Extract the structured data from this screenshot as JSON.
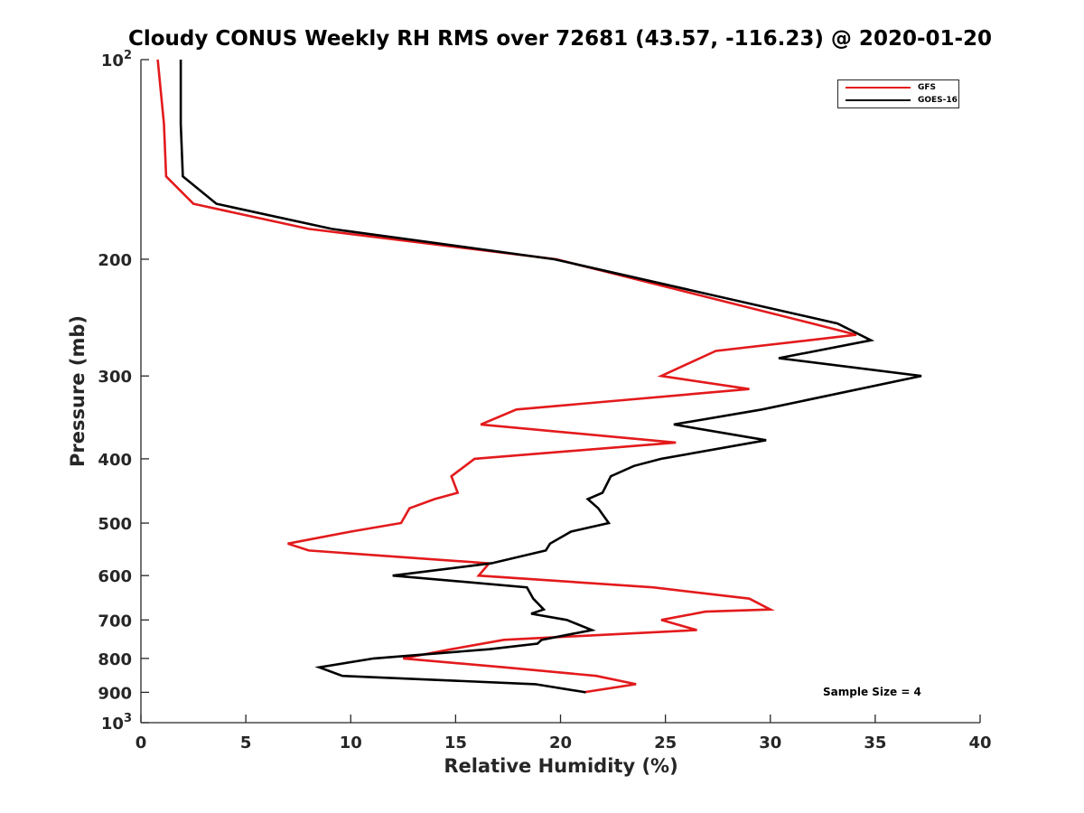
{
  "chart_data": {
    "type": "line",
    "title": "Cloudy CONUS Weekly RH RMS over 72681 (43.57, -116.23) @ 2020-01-20",
    "xlabel": "Relative Humidity (%)",
    "ylabel": "Pressure (mb)",
    "xlim": [
      0,
      40
    ],
    "ylim": [
      1000,
      100
    ],
    "yscale": "log",
    "y_reversed": true,
    "grid": false,
    "legend_position": "top-right",
    "xticks": [
      0,
      5,
      10,
      15,
      20,
      25,
      30,
      35,
      40
    ],
    "yticks": [
      {
        "value": 100,
        "base": "10",
        "exp": "2"
      },
      {
        "value": 200,
        "label": "200"
      },
      {
        "value": 300,
        "label": "300"
      },
      {
        "value": 400,
        "label": "400"
      },
      {
        "value": 500,
        "label": "500"
      },
      {
        "value": 600,
        "label": "600"
      },
      {
        "value": 700,
        "label": "700"
      },
      {
        "value": 800,
        "label": "800"
      },
      {
        "value": 900,
        "label": "900"
      },
      {
        "value": 1000,
        "base": "10",
        "exp": "3"
      }
    ],
    "series": [
      {
        "name": "GFS",
        "color": "#e31a1c",
        "points": [
          [
            0.8,
            100
          ],
          [
            1.1,
            125
          ],
          [
            1.2,
            150
          ],
          [
            2.5,
            165
          ],
          [
            8.0,
            180
          ],
          [
            19.8,
            200
          ],
          [
            32.0,
            250
          ],
          [
            34.1,
            260
          ],
          [
            27.4,
            275
          ],
          [
            24.8,
            300
          ],
          [
            29.0,
            314
          ],
          [
            17.9,
            337
          ],
          [
            16.2,
            355
          ],
          [
            25.5,
            378
          ],
          [
            15.9,
            400
          ],
          [
            14.8,
            425
          ],
          [
            15.1,
            450
          ],
          [
            14.0,
            460
          ],
          [
            12.8,
            475
          ],
          [
            12.4,
            500
          ],
          [
            10.0,
            515
          ],
          [
            7.0,
            537
          ],
          [
            8.0,
            550
          ],
          [
            16.6,
            575
          ],
          [
            16.1,
            600
          ],
          [
            24.4,
            625
          ],
          [
            29.0,
            650
          ],
          [
            30.0,
            675
          ],
          [
            26.9,
            680
          ],
          [
            24.8,
            700
          ],
          [
            26.5,
            725
          ],
          [
            17.3,
            750
          ],
          [
            14.8,
            775
          ],
          [
            12.5,
            800
          ],
          [
            17.3,
            825
          ],
          [
            21.7,
            850
          ],
          [
            23.6,
            875
          ],
          [
            21.1,
            900
          ]
        ]
      },
      {
        "name": "GOES-16",
        "color": "#000000",
        "points": [
          [
            1.9,
            100
          ],
          [
            1.9,
            125
          ],
          [
            2.0,
            150
          ],
          [
            3.6,
            165
          ],
          [
            9.1,
            180
          ],
          [
            19.7,
            200
          ],
          [
            33.2,
            250
          ],
          [
            34.8,
            265
          ],
          [
            30.4,
            282
          ],
          [
            37.2,
            300
          ],
          [
            29.6,
            337
          ],
          [
            25.4,
            355
          ],
          [
            29.8,
            375
          ],
          [
            24.8,
            400
          ],
          [
            23.5,
            410
          ],
          [
            22.4,
            425
          ],
          [
            22.0,
            450
          ],
          [
            21.3,
            460
          ],
          [
            21.8,
            475
          ],
          [
            22.3,
            500
          ],
          [
            20.5,
            515
          ],
          [
            19.5,
            537
          ],
          [
            19.3,
            550
          ],
          [
            16.7,
            575
          ],
          [
            12.0,
            600
          ],
          [
            18.4,
            625
          ],
          [
            18.7,
            650
          ],
          [
            19.2,
            675
          ],
          [
            18.6,
            685
          ],
          [
            20.3,
            700
          ],
          [
            21.5,
            725
          ],
          [
            19.1,
            750
          ],
          [
            18.9,
            760
          ],
          [
            16.6,
            775
          ],
          [
            11.1,
            800
          ],
          [
            8.5,
            825
          ],
          [
            9.6,
            850
          ],
          [
            18.8,
            875
          ],
          [
            21.2,
            900
          ]
        ]
      }
    ],
    "annotation": "Sample Size = 4"
  }
}
